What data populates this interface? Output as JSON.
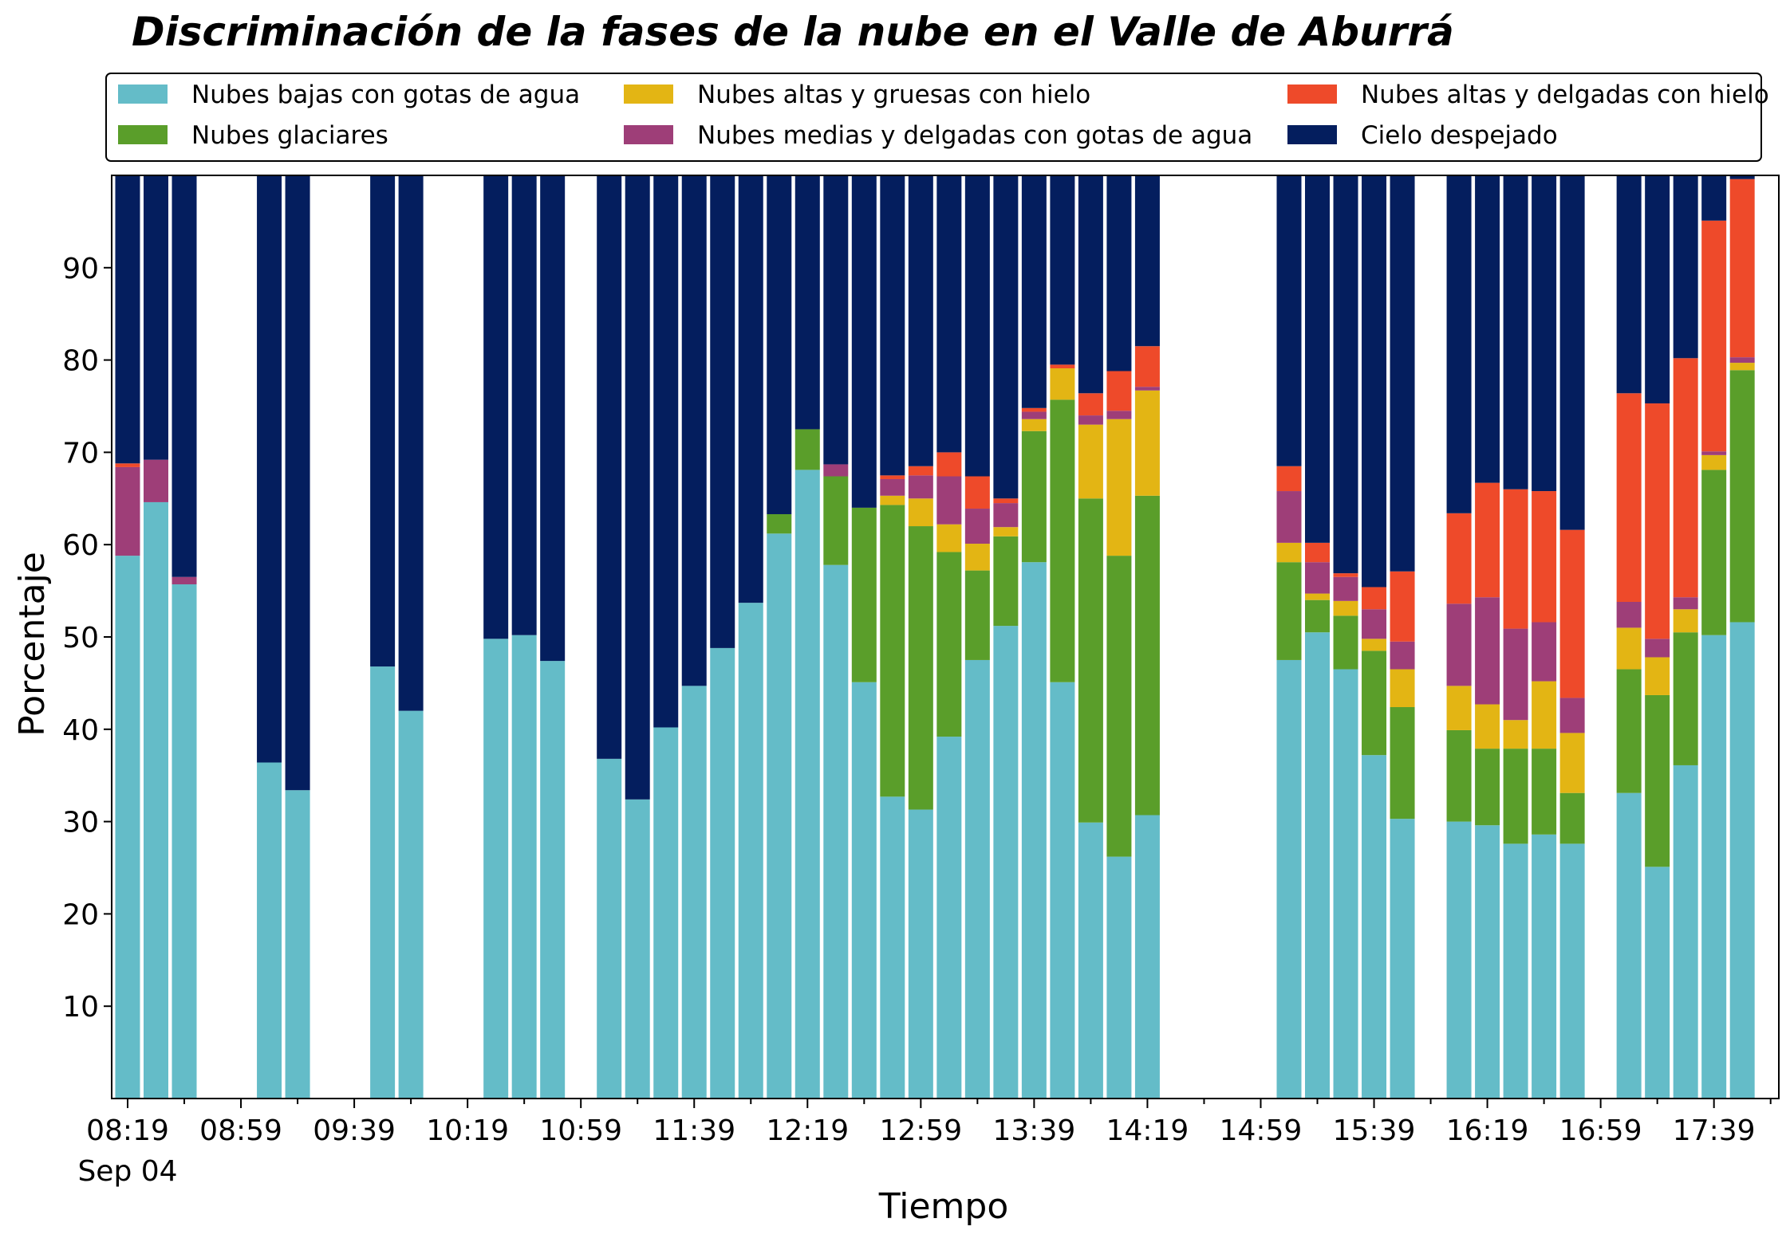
{
  "chart_data": {
    "type": "bar",
    "stacked": true,
    "title": "Discriminación de la fases de la nube en el Valle de Aburrá",
    "xlabel": "Tiempo",
    "ylabel": "Porcentaje",
    "ylim": [
      0,
      100
    ],
    "yticks": [
      10,
      20,
      30,
      40,
      50,
      60,
      70,
      80,
      90
    ],
    "x_tick_labels": [
      "08:19",
      "08:59",
      "09:39",
      "10:19",
      "10:59",
      "11:39",
      "12:19",
      "12:59",
      "13:39",
      "14:19",
      "14:59",
      "15:39",
      "16:19",
      "16:59",
      "17:39"
    ],
    "x_tick_date": "Sep 04",
    "legend_position": "top",
    "legend_columns": 3,
    "series": [
      {
        "name": "Nubes bajas con gotas de agua",
        "color": "#64bcc8"
      },
      {
        "name": "Nubes glaciares",
        "color": "#5a9e2a"
      },
      {
        "name": "Nubes altas y gruesas con hielo",
        "color": "#e3b514"
      },
      {
        "name": "Nubes medias y delgadas con gotas de agua",
        "color": "#9e3e78"
      },
      {
        "name": "Nubes altas y delgadas con hielo",
        "color": "#ee4a2a"
      },
      {
        "name": "Cielo despejado",
        "color": "#041e5e"
      }
    ],
    "bars": [
      {
        "time": "08:19",
        "values": [
          58.8,
          0,
          0,
          9.6,
          0.4,
          31.2
        ]
      },
      {
        "time": "08:29",
        "values": [
          64.6,
          0,
          0,
          4.6,
          0,
          30.8
        ]
      },
      {
        "time": "08:39",
        "values": [
          55.7,
          0,
          0,
          0.8,
          0,
          43.5
        ]
      },
      {
        "time": "09:09",
        "values": [
          36.4,
          0,
          0,
          0,
          0,
          63.6
        ]
      },
      {
        "time": "09:19",
        "values": [
          33.4,
          0,
          0,
          0,
          0,
          66.6
        ]
      },
      {
        "time": "09:49",
        "values": [
          46.8,
          0,
          0,
          0,
          0,
          53.2
        ]
      },
      {
        "time": "09:59",
        "values": [
          42.0,
          0,
          0,
          0,
          0,
          58.0
        ]
      },
      {
        "time": "10:29",
        "values": [
          49.8,
          0,
          0,
          0,
          0,
          50.2
        ]
      },
      {
        "time": "10:39",
        "values": [
          50.2,
          0,
          0,
          0,
          0,
          49.8
        ]
      },
      {
        "time": "10:49",
        "values": [
          47.4,
          0,
          0,
          0,
          0,
          52.6
        ]
      },
      {
        "time": "11:09",
        "values": [
          36.8,
          0,
          0,
          0,
          0,
          63.2
        ]
      },
      {
        "time": "11:19",
        "values": [
          32.4,
          0,
          0,
          0,
          0,
          67.6
        ]
      },
      {
        "time": "11:29",
        "values": [
          40.2,
          0,
          0,
          0,
          0,
          59.8
        ]
      },
      {
        "time": "11:39",
        "values": [
          44.7,
          0,
          0,
          0,
          0,
          55.3
        ]
      },
      {
        "time": "11:49",
        "values": [
          48.8,
          0,
          0,
          0,
          0,
          51.2
        ]
      },
      {
        "time": "11:59",
        "values": [
          53.7,
          0,
          0,
          0,
          0,
          46.3
        ]
      },
      {
        "time": "12:09",
        "values": [
          61.2,
          2.1,
          0,
          0,
          0,
          36.7
        ]
      },
      {
        "time": "12:19",
        "values": [
          68.1,
          4.4,
          0,
          0,
          0,
          27.5
        ]
      },
      {
        "time": "12:29",
        "values": [
          57.8,
          9.6,
          0,
          1.3,
          0,
          31.3
        ]
      },
      {
        "time": "12:39",
        "values": [
          45.1,
          18.9,
          0,
          0,
          0,
          36.0
        ]
      },
      {
        "time": "12:49",
        "values": [
          32.7,
          31.6,
          1.0,
          1.8,
          0.4,
          32.5
        ]
      },
      {
        "time": "12:59",
        "values": [
          31.3,
          30.7,
          3.0,
          2.5,
          1.0,
          31.5
        ]
      },
      {
        "time": "13:09",
        "values": [
          39.2,
          20.0,
          3.0,
          5.2,
          2.6,
          30.0
        ]
      },
      {
        "time": "13:19",
        "values": [
          47.5,
          9.7,
          2.9,
          3.8,
          3.5,
          32.6
        ]
      },
      {
        "time": "13:29",
        "values": [
          51.2,
          9.7,
          1.0,
          2.6,
          0.5,
          35.0
        ]
      },
      {
        "time": "13:39",
        "values": [
          58.1,
          14.2,
          1.3,
          0.8,
          0.4,
          25.2
        ]
      },
      {
        "time": "13:49",
        "values": [
          45.1,
          30.6,
          3.4,
          0,
          0.4,
          20.5
        ]
      },
      {
        "time": "13:59",
        "values": [
          29.9,
          35.1,
          8.0,
          1.0,
          2.4,
          23.6
        ]
      },
      {
        "time": "14:09",
        "values": [
          26.2,
          32.6,
          14.8,
          0.9,
          4.3,
          21.2
        ]
      },
      {
        "time": "14:19",
        "values": [
          30.7,
          34.6,
          11.4,
          0.4,
          4.4,
          18.5
        ]
      },
      {
        "time": "15:09",
        "values": [
          47.5,
          10.6,
          2.1,
          5.6,
          2.7,
          31.5
        ]
      },
      {
        "time": "15:19",
        "values": [
          50.5,
          3.5,
          0.7,
          3.4,
          2.1,
          39.8
        ]
      },
      {
        "time": "15:29",
        "values": [
          46.5,
          5.8,
          1.6,
          2.6,
          0.4,
          43.1
        ]
      },
      {
        "time": "15:39",
        "values": [
          37.2,
          11.3,
          1.3,
          3.2,
          2.4,
          44.6
        ]
      },
      {
        "time": "15:49",
        "values": [
          30.3,
          12.1,
          4.1,
          3.0,
          7.6,
          42.9
        ]
      },
      {
        "time": "16:09",
        "values": [
          30.0,
          9.9,
          4.8,
          8.9,
          9.8,
          36.6
        ]
      },
      {
        "time": "16:19",
        "values": [
          29.6,
          8.3,
          4.8,
          11.6,
          12.4,
          33.3
        ]
      },
      {
        "time": "16:29",
        "values": [
          27.6,
          10.3,
          3.1,
          9.9,
          15.1,
          34.0
        ]
      },
      {
        "time": "16:39",
        "values": [
          28.6,
          9.3,
          7.3,
          6.4,
          14.2,
          34.2
        ]
      },
      {
        "time": "16:49",
        "values": [
          27.6,
          5.5,
          6.5,
          3.8,
          18.2,
          38.4
        ]
      },
      {
        "time": "17:09",
        "values": [
          33.1,
          13.4,
          4.5,
          2.8,
          22.6,
          23.6
        ]
      },
      {
        "time": "17:19",
        "values": [
          25.1,
          18.6,
          4.1,
          2.0,
          25.5,
          24.7
        ]
      },
      {
        "time": "17:29",
        "values": [
          36.1,
          14.4,
          2.5,
          1.3,
          25.9,
          19.8
        ]
      },
      {
        "time": "17:39",
        "values": [
          50.2,
          17.9,
          1.6,
          0.4,
          25.0,
          4.9
        ]
      },
      {
        "time": "17:49",
        "values": [
          51.6,
          27.3,
          0.8,
          0.6,
          19.3,
          0.4
        ]
      }
    ]
  }
}
